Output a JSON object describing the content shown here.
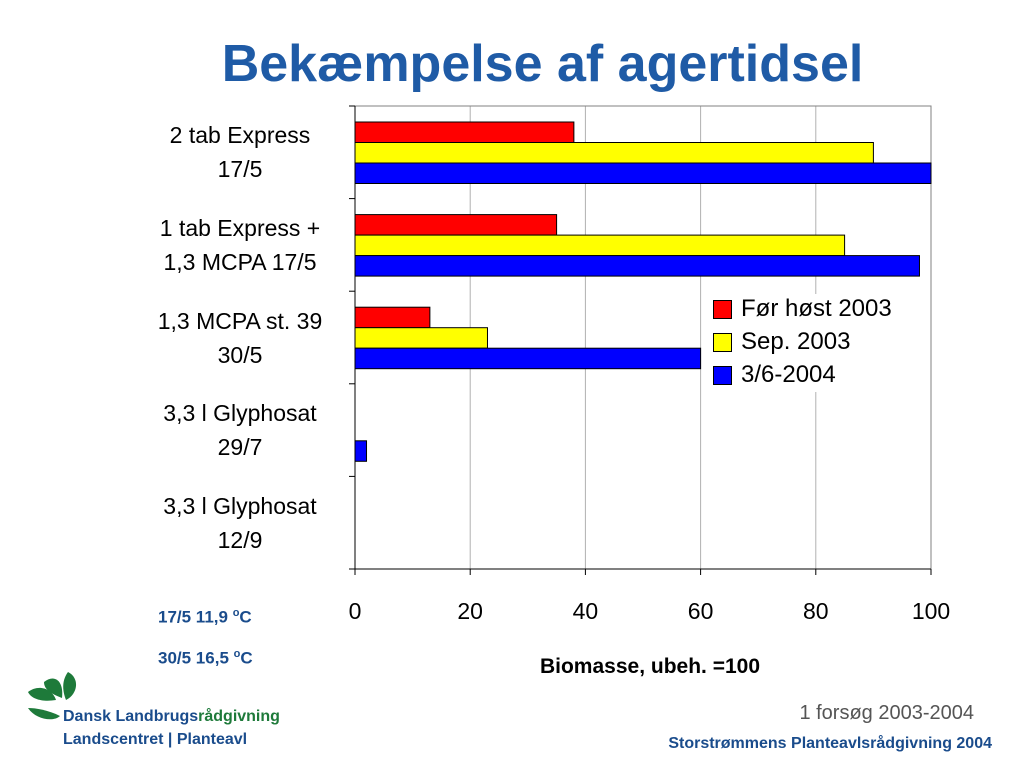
{
  "page": {
    "title": "Bekæmpelse af agertidsel",
    "temps": [
      {
        "label": "17/5 11,9 ",
        "sup": "o",
        "unit": "C"
      },
      {
        "label": "30/5 16,5 ",
        "sup": "o",
        "unit": "C"
      }
    ],
    "org": {
      "name_main": "Dansk Landbrugs",
      "name_accent": "rådgivning",
      "subtitle": "Landscentret | Planteavl"
    },
    "note": "1 forsøg 2003-2004",
    "footer": "Storstrømmens Planteavlsrådgivning 2004"
  },
  "colors": {
    "title": "#1f5ba6",
    "series": [
      "#ff0000",
      "#ffff00",
      "#0000ff"
    ],
    "brand_blue": "#1a4c8c",
    "brand_green": "#1e7a3a"
  },
  "chart_data": {
    "type": "bar",
    "orientation": "horizontal",
    "categories": [
      [
        "2 tab Express",
        "17/5"
      ],
      [
        "1 tab Express +",
        "1,3 MCPA 17/5"
      ],
      [
        "1,3 MCPA st. 39",
        "30/5"
      ],
      [
        "3,3 l Glyphosat",
        "29/7"
      ],
      [
        "3,3 l Glyphosat",
        "12/9"
      ]
    ],
    "series": [
      {
        "name": "Før høst 2003",
        "values": [
          38,
          35,
          13,
          0,
          0
        ]
      },
      {
        "name": "Sep. 2003",
        "values": [
          90,
          85,
          23,
          0,
          0
        ]
      },
      {
        "name": "3/6-2004",
        "values": [
          100,
          98,
          60,
          2,
          0
        ]
      }
    ],
    "xlabel": "Biomasse, ubeh. =100",
    "xlim": [
      0,
      100
    ],
    "xticks": [
      "0",
      "20",
      "40",
      "60",
      "80",
      "100"
    ],
    "grid": true,
    "legend": "right"
  }
}
